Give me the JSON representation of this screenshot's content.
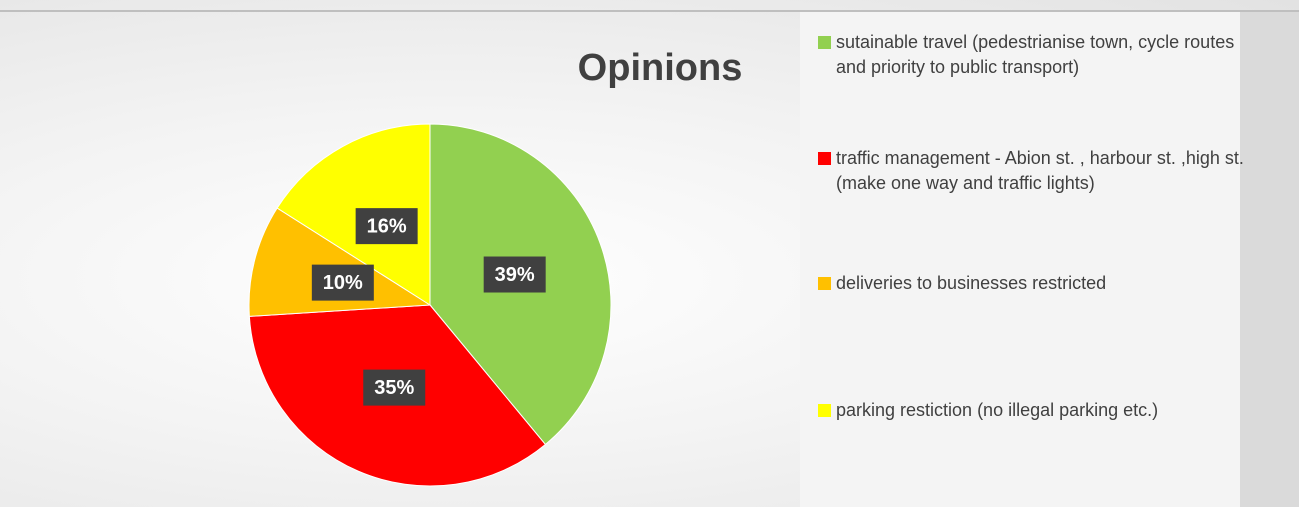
{
  "chart_data": {
    "type": "pie",
    "title": "Opinions",
    "categories": [
      "sutainable travel (pedestrianise town, cycle routes and priority to public transport)",
      "traffic management - Abion st. , harbour st. ,high st. (make one way and traffic lights)",
      "deliveries to businesses restricted",
      "parking restiction (no illegal parking etc.)"
    ],
    "values": [
      39,
      35,
      10,
      16
    ],
    "value_labels": [
      "39%",
      "35%",
      "10%",
      "16%"
    ],
    "colors": [
      "#92d050",
      "#ff0000",
      "#ffc000",
      "#ffff00"
    ],
    "legend": "right"
  }
}
